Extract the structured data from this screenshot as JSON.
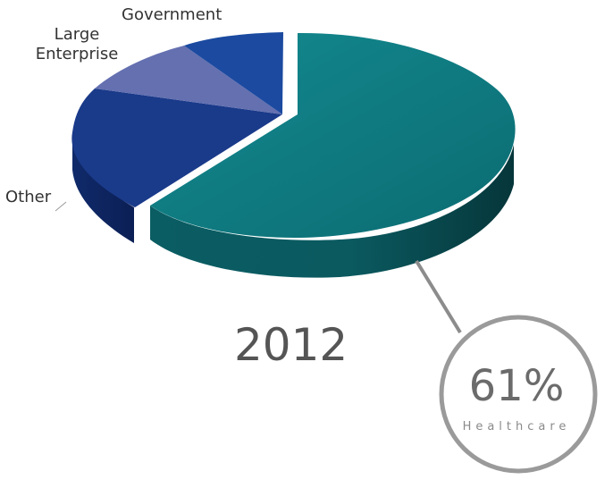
{
  "chart_data": {
    "type": "pie",
    "title": "2012",
    "slices": [
      {
        "label": "Healthcare",
        "value": 61,
        "color": "#0e7a80",
        "exploded": true
      },
      {
        "label": "Other",
        "value": 20,
        "color": "#1a3a8a"
      },
      {
        "label": "Large Enterprise",
        "value": 11,
        "color": "#6470b0"
      },
      {
        "label": "Government",
        "value": 8,
        "color": "#1b4aa0"
      }
    ],
    "callout": {
      "value_text": "61%",
      "category": "Healthcare"
    }
  },
  "labels": {
    "government": "Government",
    "large_enterprise": "Large\nEnterprise",
    "other": "Other"
  }
}
